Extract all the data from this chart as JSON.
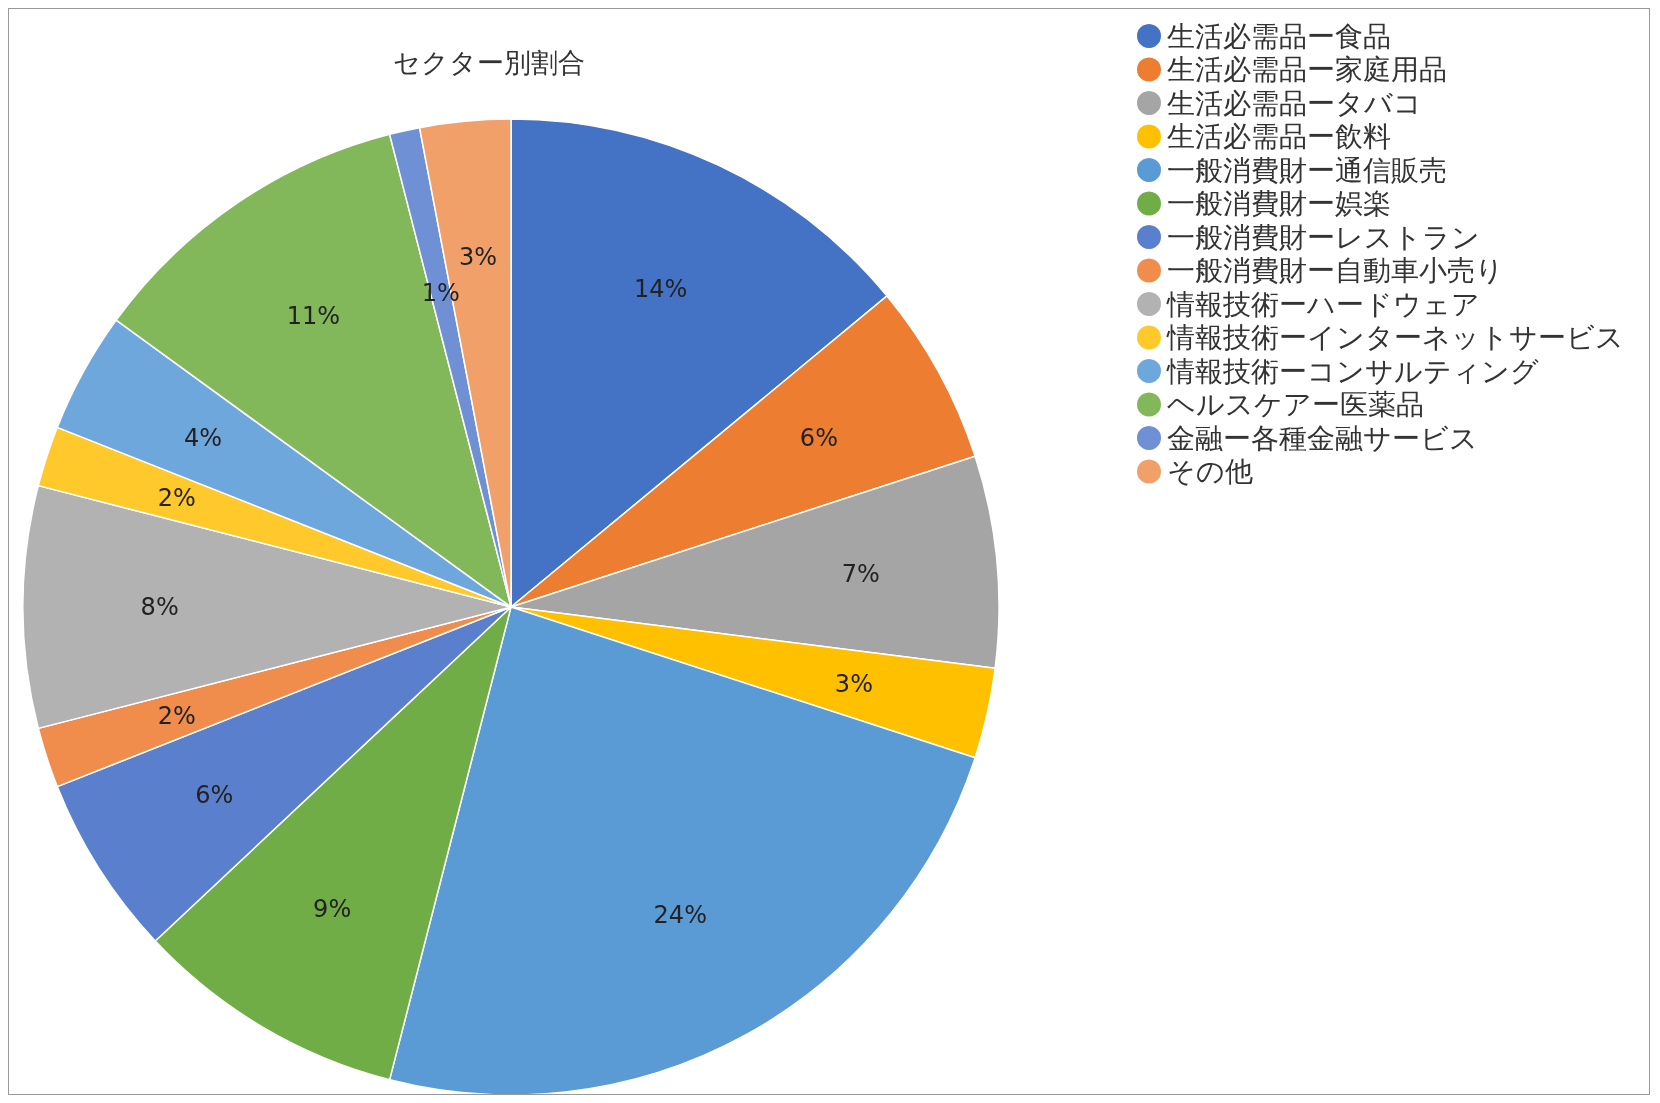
{
  "chart_data": {
    "type": "pie",
    "title": "セクター別割合",
    "categories": [
      "生活必需品ー食品",
      "生活必需品ー家庭用品",
      "生活必需品ータバコ",
      "生活必需品ー飲料",
      "一般消費財ー通信販売",
      "一般消費財ー娯楽",
      "一般消費財ーレストラン",
      "一般消費財ー自動車小売り",
      "情報技術ーハードウェア",
      "情報技術ーインターネットサービス",
      "情報技術ーコンサルティング",
      "ヘルスケアー医薬品",
      "金融ー各種金融サービス",
      "その他"
    ],
    "values": [
      14,
      6,
      7,
      3,
      24,
      9,
      6,
      2,
      8,
      2,
      4,
      11,
      1,
      3
    ],
    "colors": [
      "#4472c4",
      "#ed7d31",
      "#a5a5a5",
      "#ffc000",
      "#5b9bd5",
      "#70ad47",
      "#5a7fcd",
      "#f08c4c",
      "#b2b2b2",
      "#ffc92b",
      "#6ea7dc",
      "#82b85a",
      "#7090d6",
      "#f1a06a"
    ],
    "value_labels": [
      "14%",
      "6%",
      "7%",
      "3%",
      "24%",
      "9%",
      "6%",
      "2%",
      "8%",
      "2%",
      "4%",
      "11%",
      "1%",
      "3%"
    ],
    "legend": "top right"
  }
}
